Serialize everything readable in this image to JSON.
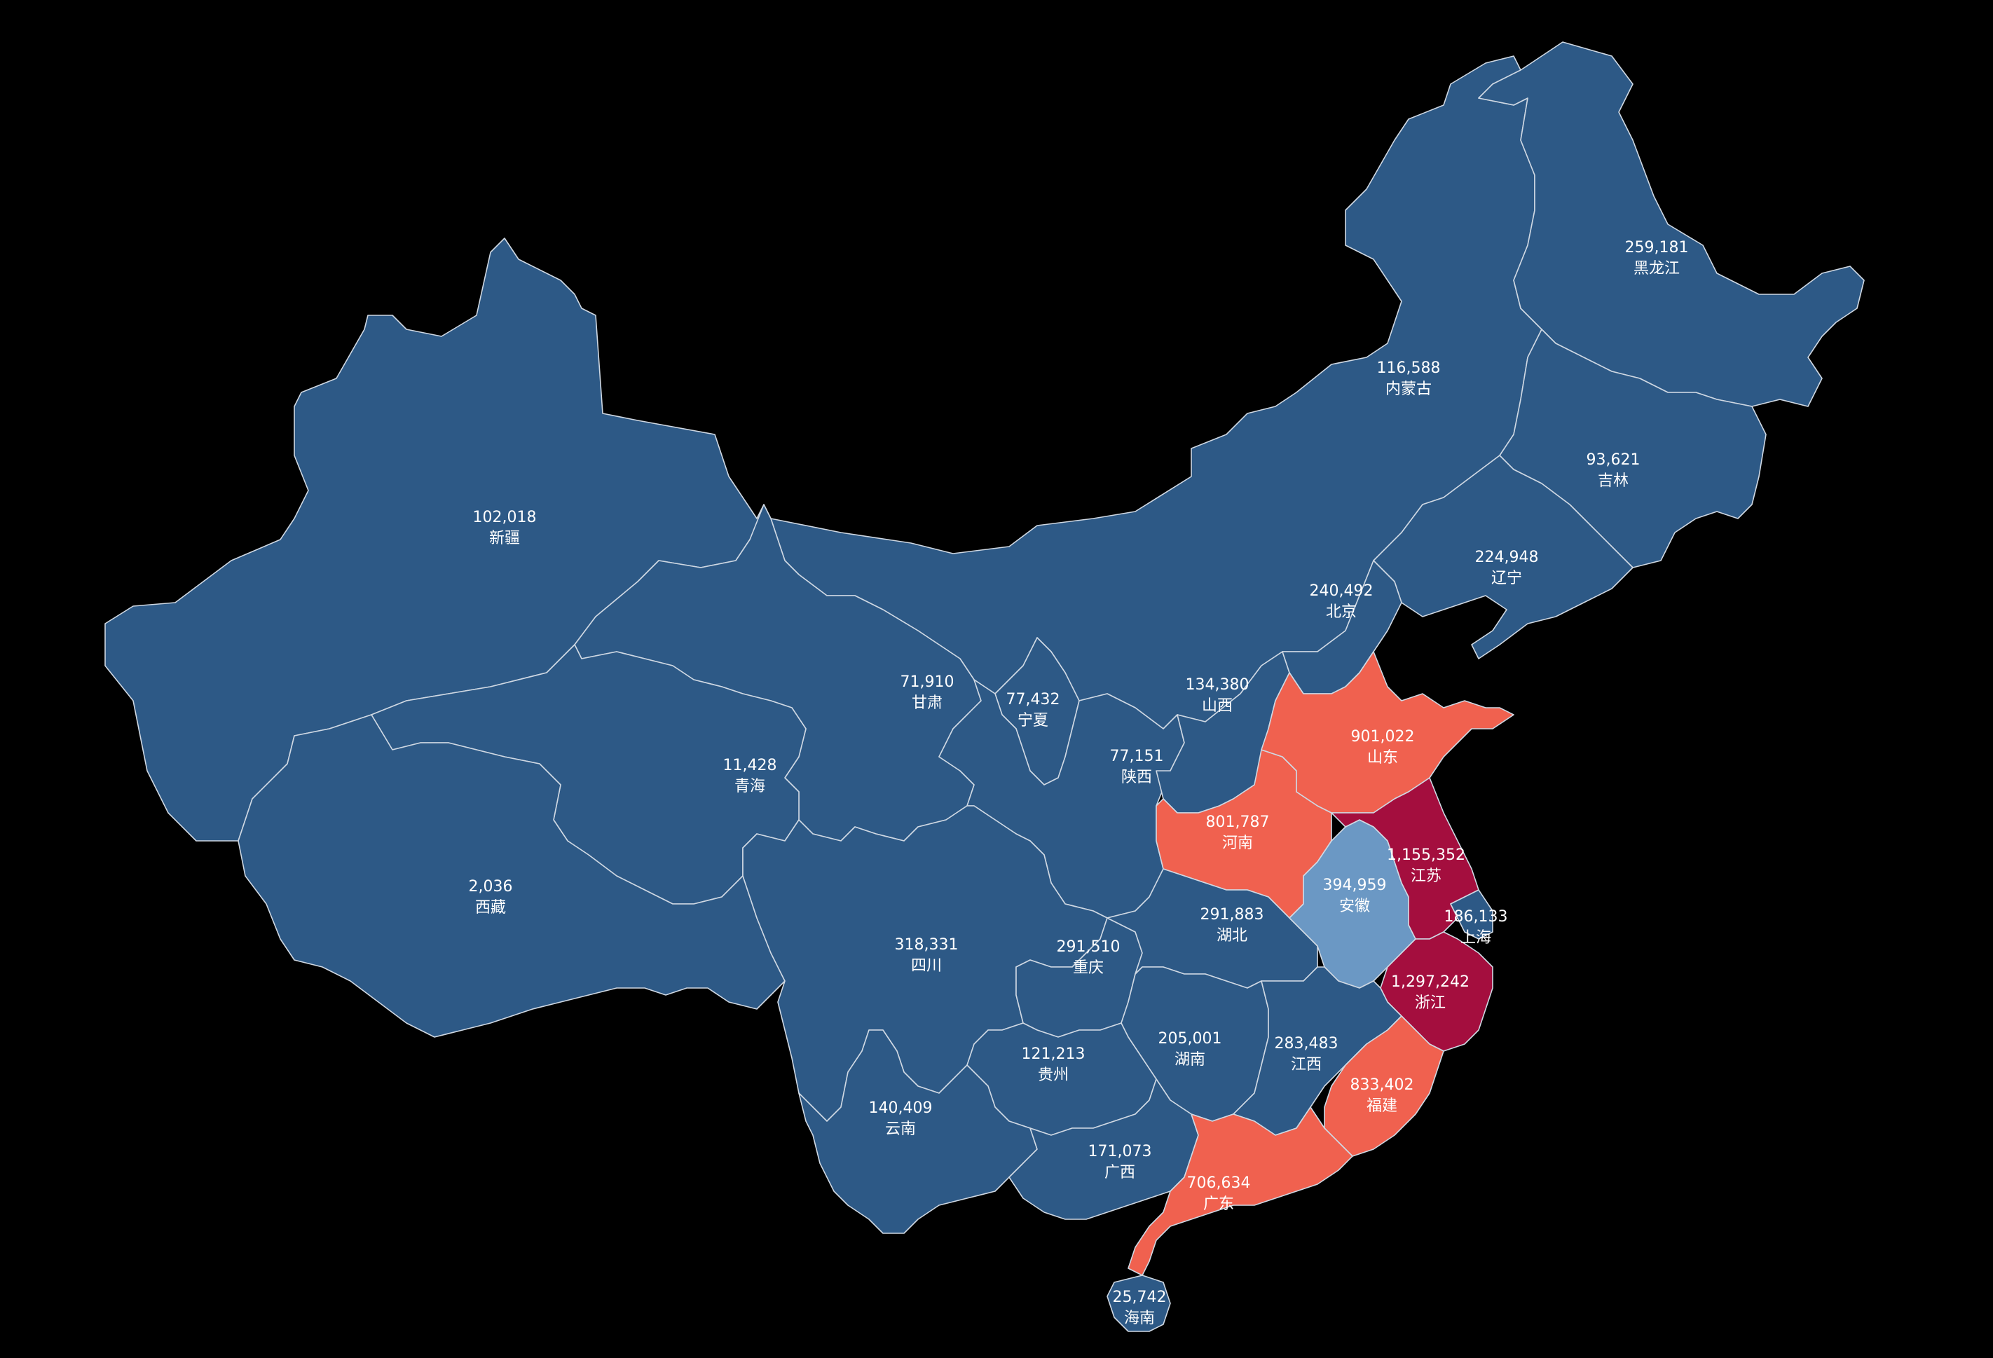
{
  "colors": {
    "background": "#000000",
    "tier_low": "#2d5986",
    "tier_mid": "#6b98c4",
    "tier_high": "#f0614f",
    "tier_top": "#a40e3e",
    "border": "#cfd8e3",
    "label": "#ffffff"
  },
  "provinces": {
    "xinjiang": {
      "name": "新疆",
      "value": "102,018",
      "tier": "low"
    },
    "xizang": {
      "name": "西藏",
      "value": "2,036",
      "tier": "low"
    },
    "qinghai": {
      "name": "青海",
      "value": "11,428",
      "tier": "low"
    },
    "gansu": {
      "name": "甘肃",
      "value": "71,910",
      "tier": "low"
    },
    "ningxia": {
      "name": "宁夏",
      "value": "77,432",
      "tier": "low"
    },
    "neimenggu": {
      "name": "内蒙古",
      "value": "116,588",
      "tier": "low"
    },
    "heilongjiang": {
      "name": "黑龙江",
      "value": "259,181",
      "tier": "low"
    },
    "jilin": {
      "name": "吉林",
      "value": "93,621",
      "tier": "low"
    },
    "liaoning": {
      "name": "辽宁",
      "value": "224,948",
      "tier": "low"
    },
    "beijing": {
      "name": "北京",
      "value": "240,492",
      "tier": "low"
    },
    "shanxi": {
      "name": "山西",
      "value": "134,380",
      "tier": "low"
    },
    "shaanxi": {
      "name": "陕西",
      "value": "77,151",
      "tier": "low"
    },
    "shandong": {
      "name": "山东",
      "value": "901,022",
      "tier": "high"
    },
    "henan": {
      "name": "河南",
      "value": "801,787",
      "tier": "high"
    },
    "jiangsu": {
      "name": "江苏",
      "value": "1,155,352",
      "tier": "top"
    },
    "anhui": {
      "name": "安徽",
      "value": "394,959",
      "tier": "mid"
    },
    "shanghai": {
      "name": "上海",
      "value": "186,133",
      "tier": "low"
    },
    "hubei": {
      "name": "湖北",
      "value": "291,883",
      "tier": "low"
    },
    "sichuan": {
      "name": "四川",
      "value": "318,331",
      "tier": "low"
    },
    "chongqing": {
      "name": "重庆",
      "value": "291,510",
      "tier": "low"
    },
    "zhejiang": {
      "name": "浙江",
      "value": "1,297,242",
      "tier": "top"
    },
    "hunan": {
      "name": "湖南",
      "value": "205,001",
      "tier": "low"
    },
    "jiangxi": {
      "name": "江西",
      "value": "283,483",
      "tier": "low"
    },
    "guizhou": {
      "name": "贵州",
      "value": "121,213",
      "tier": "low"
    },
    "fujian": {
      "name": "福建",
      "value": "833,402",
      "tier": "high"
    },
    "yunnan": {
      "name": "云南",
      "value": "140,409",
      "tier": "low"
    },
    "guangxi": {
      "name": "广西",
      "value": "171,073",
      "tier": "low"
    },
    "guangdong": {
      "name": "广东",
      "value": "706,634",
      "tier": "high"
    },
    "hainan": {
      "name": "海南",
      "value": "25,742",
      "tier": "low"
    }
  }
}
